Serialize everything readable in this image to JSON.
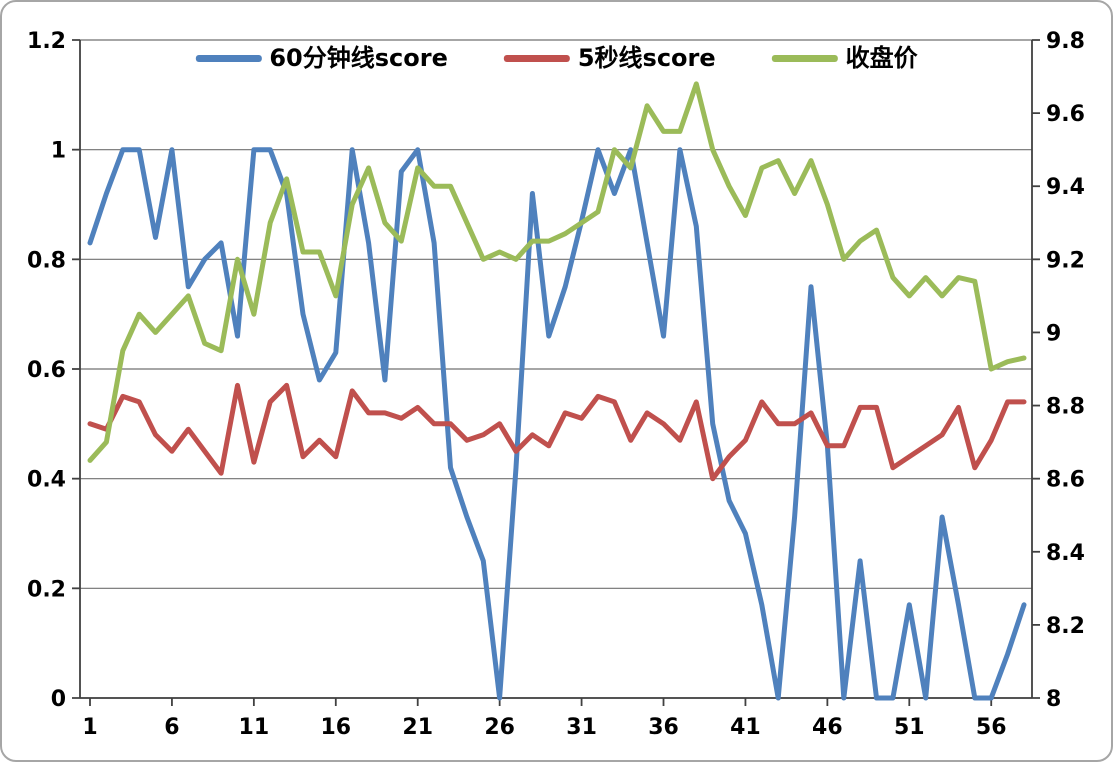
{
  "chart_data": {
    "type": "line",
    "grid": true,
    "legend_position": "top",
    "x": [
      1,
      2,
      3,
      4,
      5,
      6,
      7,
      8,
      9,
      10,
      11,
      12,
      13,
      14,
      15,
      16,
      17,
      18,
      19,
      20,
      21,
      22,
      23,
      24,
      25,
      26,
      27,
      28,
      29,
      30,
      31,
      32,
      33,
      34,
      35,
      36,
      37,
      38,
      39,
      40,
      41,
      42,
      43,
      44,
      45,
      46,
      47,
      48,
      49,
      50,
      51,
      52,
      53,
      54,
      55,
      56,
      57,
      58
    ],
    "x_tick_labels": [
      "1",
      "6",
      "11",
      "16",
      "21",
      "26",
      "31",
      "36",
      "41",
      "46",
      "51",
      "56"
    ],
    "left_axis": {
      "min": 0,
      "max": 1.2,
      "ticks": [
        0,
        0.2,
        0.4,
        0.6,
        0.8,
        1,
        1.2
      ],
      "tick_labels": [
        "0",
        "0.2",
        "0.4",
        "0.6",
        "0.8",
        "1",
        "1.2"
      ]
    },
    "right_axis": {
      "min": 8,
      "max": 9.8,
      "ticks": [
        8,
        8.2,
        8.4,
        8.6,
        8.8,
        9,
        9.2,
        9.4,
        9.6,
        9.8
      ],
      "tick_labels": [
        "8",
        "8.2",
        "8.4",
        "8.6",
        "8.8",
        "9",
        "9.2",
        "9.4",
        "9.6",
        "9.8"
      ]
    },
    "series": [
      {
        "name": "60分钟线score",
        "axis": "left",
        "color": "#4f81bd",
        "values": [
          0.83,
          0.92,
          1,
          1,
          0.84,
          1,
          0.75,
          0.8,
          0.83,
          0.66,
          1,
          1,
          0.92,
          0.7,
          0.58,
          0.63,
          1,
          0.83,
          0.58,
          0.96,
          1,
          0.83,
          0.42,
          0.33,
          0.25,
          0,
          0.42,
          0.92,
          0.66,
          0.75,
          0.87,
          1,
          0.92,
          1,
          0.83,
          0.66,
          1,
          0.86,
          0.5,
          0.36,
          0.3,
          0.17,
          0,
          0.33,
          0.75,
          0.46,
          0,
          0.25,
          0,
          0,
          0.17,
          0,
          0.33,
          0.17,
          0,
          0,
          0.08,
          0.17
        ]
      },
      {
        "name": "5秒线score",
        "axis": "left",
        "color": "#c0504d",
        "values": [
          0.5,
          0.49,
          0.55,
          0.54,
          0.48,
          0.45,
          0.49,
          0.45,
          0.41,
          0.57,
          0.43,
          0.54,
          0.57,
          0.44,
          0.47,
          0.44,
          0.56,
          0.52,
          0.52,
          0.51,
          0.53,
          0.5,
          0.5,
          0.47,
          0.48,
          0.5,
          0.45,
          0.48,
          0.46,
          0.52,
          0.51,
          0.55,
          0.54,
          0.47,
          0.52,
          0.5,
          0.47,
          0.54,
          0.4,
          0.44,
          0.47,
          0.54,
          0.5,
          0.5,
          0.52,
          0.46,
          0.46,
          0.53,
          0.53,
          0.42,
          0.44,
          0.46,
          0.48,
          0.53,
          0.42,
          0.47,
          0.54,
          0.54
        ]
      },
      {
        "name": "收盘价",
        "axis": "right",
        "color": "#9bbb59",
        "values": [
          8.65,
          8.7,
          8.95,
          9.05,
          9.0,
          9.05,
          9.1,
          8.97,
          8.95,
          9.2,
          9.05,
          9.3,
          9.42,
          9.22,
          9.22,
          9.1,
          9.35,
          9.45,
          9.3,
          9.25,
          9.45,
          9.4,
          9.4,
          9.3,
          9.2,
          9.22,
          9.2,
          9.25,
          9.25,
          9.27,
          9.3,
          9.33,
          9.5,
          9.45,
          9.62,
          9.55,
          9.55,
          9.68,
          9.5,
          9.4,
          9.32,
          9.45,
          9.47,
          9.38,
          9.47,
          9.35,
          9.2,
          9.25,
          9.28,
          9.15,
          9.1,
          9.15,
          9.1,
          9.15,
          9.14,
          8.9,
          8.92,
          8.93
        ]
      }
    ]
  }
}
